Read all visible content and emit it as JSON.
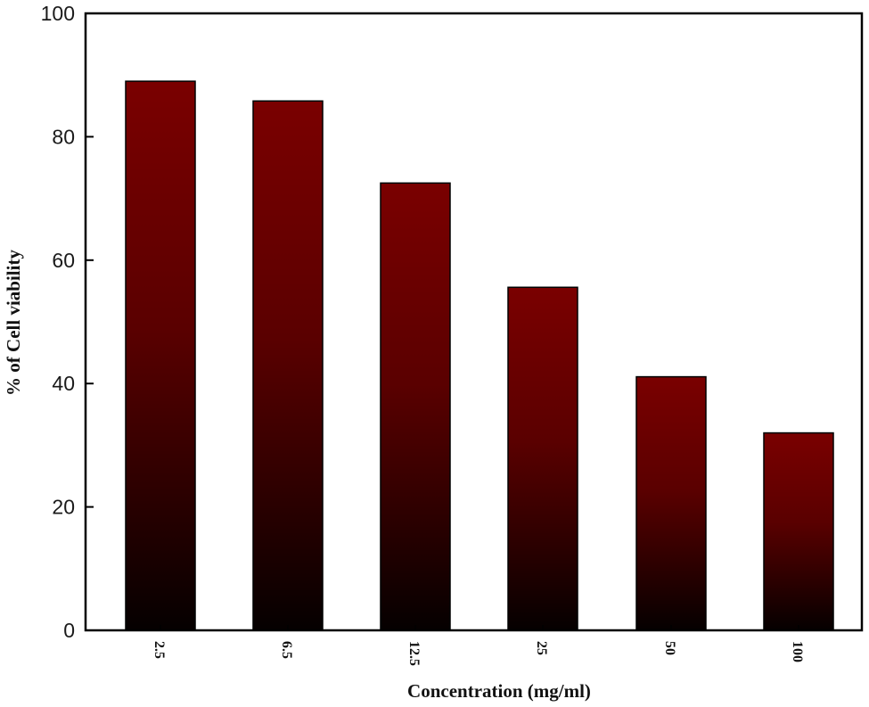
{
  "chart_data": {
    "type": "bar",
    "title": "",
    "xlabel": "Concentration (mg/ml)",
    "ylabel": "% of Cell viability",
    "categories": [
      "2.5",
      "6.5",
      "12.5",
      "25",
      "50",
      "100"
    ],
    "values": [
      89,
      85.8,
      72.5,
      55.6,
      41.1,
      32
    ],
    "ylim": [
      0,
      100
    ],
    "yticks": [
      "0",
      "20",
      "40",
      "60",
      "80",
      "100"
    ],
    "grid": false,
    "legend": "none",
    "colors": {
      "bar_top": "#7a0000",
      "bar_bottom": "#050000",
      "axis": "#000000"
    }
  }
}
